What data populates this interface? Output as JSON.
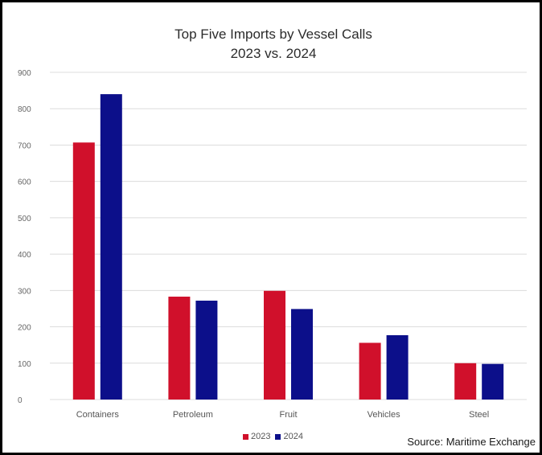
{
  "chart_data": {
    "type": "bar",
    "title": "Top Five Imports by Vessel Calls",
    "subtitle": "2023 vs. 2024",
    "xlabel": "",
    "ylabel": "",
    "categories": [
      "Containers",
      "Petroleum",
      "Fruit",
      "Vehicles",
      "Steel"
    ],
    "series": [
      {
        "name": "2023",
        "color": "#d0102b",
        "values": [
          707,
          283,
          299,
          156,
          100
        ]
      },
      {
        "name": "2024",
        "color": "#0c0f8a",
        "values": [
          840,
          272,
          249,
          177,
          98
        ]
      }
    ],
    "ylim": [
      0,
      900
    ],
    "yticks": [
      "0",
      "100",
      "200",
      "300",
      "400",
      "500",
      "600",
      "700",
      "800",
      "900"
    ],
    "grid": true,
    "legend": "bottom-center",
    "source": "Source: Maritime Exchange"
  }
}
